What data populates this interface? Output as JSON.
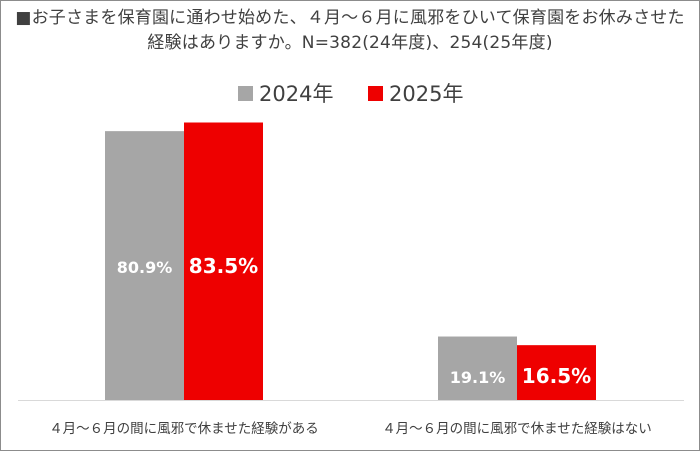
{
  "chart_data": {
    "type": "bar",
    "title": "■お子さまを保育園に通わせ始めた、４月～６月に風邪をひいて保育園をお休みさせた経験はありますか。N=382(24年度)、254(25年度)",
    "categories": [
      "４月～６月の間に風邪で休ませた経験がある",
      "４月～６月の間に風邪で休ませた経験はない"
    ],
    "series": [
      {
        "name": "2024年",
        "color": "#a6a6a6",
        "values": [
          80.9,
          19.1
        ],
        "labels": [
          "80.9%",
          "19.1%"
        ]
      },
      {
        "name": "2025年",
        "color": "#ee0000",
        "values": [
          83.5,
          16.5
        ],
        "labels": [
          "83.5%",
          "16.5%"
        ]
      }
    ],
    "ylim": [
      0,
      100
    ],
    "legend_position": "top-center",
    "grid": false
  }
}
